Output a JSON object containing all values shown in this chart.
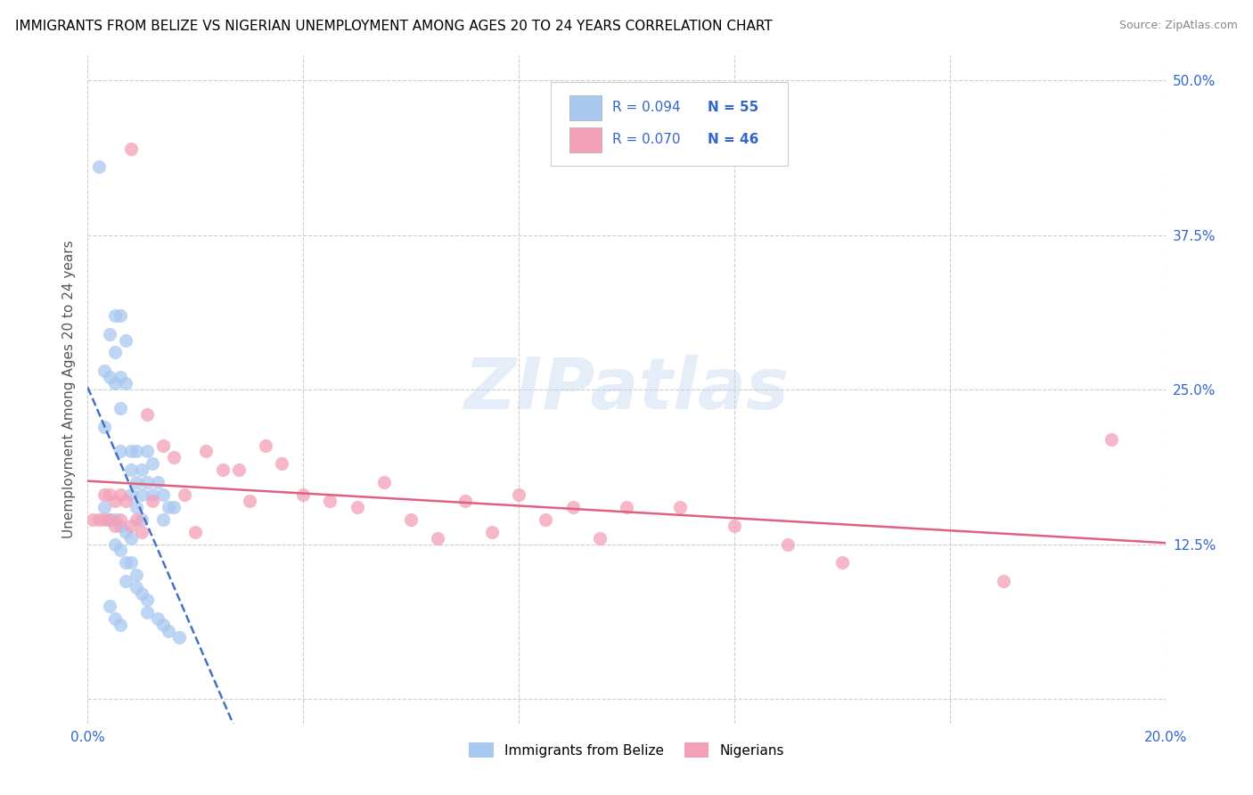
{
  "title": "IMMIGRANTS FROM BELIZE VS NIGERIAN UNEMPLOYMENT AMONG AGES 20 TO 24 YEARS CORRELATION CHART",
  "source": "Source: ZipAtlas.com",
  "ylabel": "Unemployment Among Ages 20 to 24 years",
  "xlim": [
    0.0,
    0.2
  ],
  "ylim": [
    -0.02,
    0.52
  ],
  "xtick_positions": [
    0.0,
    0.04,
    0.08,
    0.12,
    0.16,
    0.2
  ],
  "xticklabels": [
    "0.0%",
    "",
    "",
    "",
    "",
    "20.0%"
  ],
  "yticks_right": [
    0.0,
    0.125,
    0.25,
    0.375,
    0.5
  ],
  "yticklabels_right": [
    "",
    "12.5%",
    "25.0%",
    "37.5%",
    "50.0%"
  ],
  "r_belize": 0.094,
  "n_belize": 55,
  "r_nigerian": 0.07,
  "n_nigerian": 46,
  "color_belize": "#a8c8f0",
  "color_nigerian": "#f4a0b8",
  "color_belize_line": "#4472c4",
  "color_nigerian_line": "#e06080",
  "color_r_text": "#3366cc",
  "watermark_text": "ZIPatlas",
  "belize_x": [
    0.002,
    0.003,
    0.003,
    0.004,
    0.004,
    0.005,
    0.005,
    0.005,
    0.006,
    0.006,
    0.006,
    0.006,
    0.007,
    0.007,
    0.008,
    0.008,
    0.008,
    0.009,
    0.009,
    0.009,
    0.01,
    0.01,
    0.01,
    0.011,
    0.011,
    0.012,
    0.012,
    0.013,
    0.014,
    0.014,
    0.015,
    0.016,
    0.003,
    0.004,
    0.005,
    0.006,
    0.007,
    0.008,
    0.005,
    0.006,
    0.007,
    0.007,
    0.008,
    0.009,
    0.009,
    0.01,
    0.011,
    0.011,
    0.013,
    0.014,
    0.015,
    0.017,
    0.004,
    0.005,
    0.006
  ],
  "belize_y": [
    0.43,
    0.265,
    0.22,
    0.295,
    0.26,
    0.31,
    0.28,
    0.255,
    0.31,
    0.26,
    0.235,
    0.2,
    0.29,
    0.255,
    0.2,
    0.185,
    0.165,
    0.2,
    0.175,
    0.155,
    0.185,
    0.165,
    0.145,
    0.2,
    0.175,
    0.19,
    0.165,
    0.175,
    0.165,
    0.145,
    0.155,
    0.155,
    0.155,
    0.145,
    0.145,
    0.14,
    0.135,
    0.13,
    0.125,
    0.12,
    0.11,
    0.095,
    0.11,
    0.1,
    0.09,
    0.085,
    0.08,
    0.07,
    0.065,
    0.06,
    0.055,
    0.05,
    0.075,
    0.065,
    0.06
  ],
  "nigerian_x": [
    0.001,
    0.002,
    0.003,
    0.003,
    0.004,
    0.004,
    0.005,
    0.005,
    0.006,
    0.006,
    0.007,
    0.008,
    0.009,
    0.01,
    0.011,
    0.012,
    0.014,
    0.016,
    0.018,
    0.02,
    0.022,
    0.025,
    0.028,
    0.03,
    0.033,
    0.036,
    0.04,
    0.045,
    0.05,
    0.055,
    0.06,
    0.065,
    0.07,
    0.075,
    0.08,
    0.085,
    0.09,
    0.095,
    0.1,
    0.11,
    0.12,
    0.13,
    0.14,
    0.17,
    0.19,
    0.008
  ],
  "nigerian_y": [
    0.145,
    0.145,
    0.165,
    0.145,
    0.165,
    0.145,
    0.16,
    0.14,
    0.165,
    0.145,
    0.16,
    0.14,
    0.145,
    0.135,
    0.23,
    0.16,
    0.205,
    0.195,
    0.165,
    0.135,
    0.2,
    0.185,
    0.185,
    0.16,
    0.205,
    0.19,
    0.165,
    0.16,
    0.155,
    0.175,
    0.145,
    0.13,
    0.16,
    0.135,
    0.165,
    0.145,
    0.155,
    0.13,
    0.155,
    0.155,
    0.14,
    0.125,
    0.11,
    0.095,
    0.21,
    0.445
  ]
}
